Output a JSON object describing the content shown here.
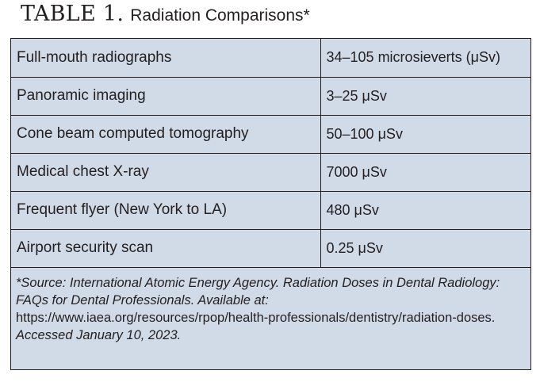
{
  "title": {
    "label": "TABLE 1.",
    "text": "Radiation Comparisons*"
  },
  "rows": [
    {
      "item": "Full-mouth radiographs",
      "dose": "34–105 microsieverts (μSv)"
    },
    {
      "item": "Panoramic imaging",
      "dose": "3–25 μSv"
    },
    {
      "item": "Cone beam computed tomography",
      "dose": "50–100 μSv"
    },
    {
      "item": "Medical chest X-ray",
      "dose": "7000 μSv"
    },
    {
      "item": "Frequent flyer (New York to LA)",
      "dose": "480 μSv"
    },
    {
      "item": "Airport security scan",
      "dose": "0.25 μSv"
    }
  ],
  "footnote": {
    "source": "*Source: International Atomic Energy Agency. Radiation Doses in Dental Radiology: FAQs for Dental Professionals. Available at:",
    "url": "https://www.iaea.org/resources/rpop/health-professionals/dentistry/radiation-doses.",
    "accessed": "Accessed January 10, 2023."
  }
}
